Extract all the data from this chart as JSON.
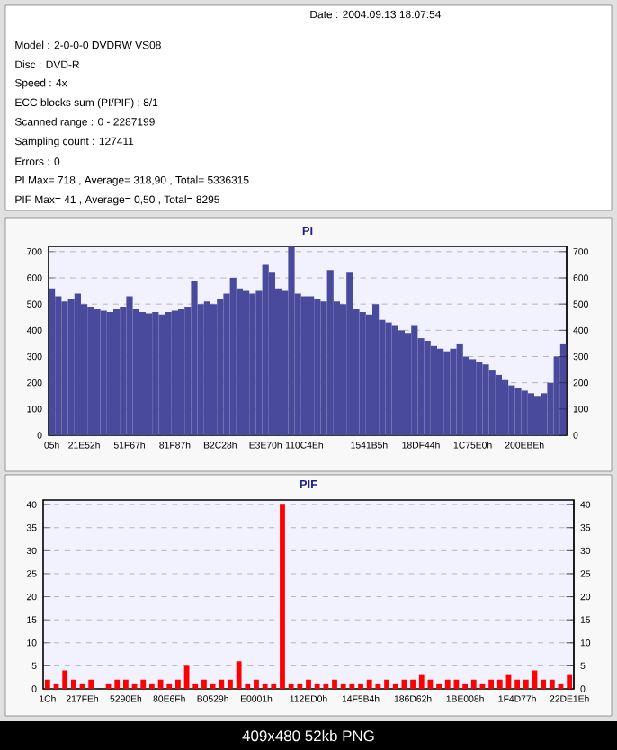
{
  "chart_data": [
    {
      "type": "other",
      "annotations": [
        "Date : 2004.09.13 18:07:54",
        "Model : 2-0-0-0 DVDRW VS08",
        "Disc : DVD-R",
        "Speed : 4x",
        "ECC blocks sum (PI/PIF) : 8/1",
        "Scanned range : 0 - 2287199",
        "Sampling count : 127411",
        "Errors : 0",
        "PI Max= 718 , Average= 318,90 , Total= 5336315",
        "PIF Max= 41 , Average= 0,50 , Total= 8295"
      ]
    },
    {
      "type": "bar",
      "title": "PI",
      "color": "#4a4a9c",
      "grid": "y",
      "categories": [
        "05h",
        null,
        null,
        null,
        null,
        "21E52h",
        null,
        null,
        null,
        null,
        null,
        null,
        "51F67h",
        null,
        null,
        null,
        null,
        null,
        null,
        "81F87h",
        null,
        null,
        null,
        null,
        null,
        null,
        "B2C28h",
        null,
        null,
        null,
        null,
        null,
        null,
        "E3E70h",
        null,
        null,
        null,
        null,
        null,
        "110C4Eh",
        null,
        null,
        null,
        null,
        null,
        null,
        null,
        null,
        null,
        "1541B5h",
        null,
        null,
        null,
        null,
        null,
        null,
        null,
        "18DF44h",
        null,
        null,
        null,
        null,
        null,
        null,
        null,
        "1C75E0h",
        null,
        null,
        null,
        null,
        null,
        null,
        null,
        "200EBEh",
        null,
        null,
        null,
        null,
        null,
        null
      ],
      "values": [
        560,
        530,
        510,
        520,
        540,
        500,
        490,
        480,
        475,
        470,
        480,
        490,
        530,
        480,
        470,
        465,
        470,
        460,
        470,
        475,
        480,
        490,
        590,
        500,
        510,
        500,
        520,
        540,
        600,
        560,
        550,
        540,
        550,
        650,
        620,
        560,
        550,
        718,
        540,
        530,
        530,
        520,
        510,
        630,
        510,
        500,
        620,
        480,
        470,
        460,
        500,
        440,
        430,
        420,
        400,
        390,
        420,
        370,
        360,
        340,
        330,
        320,
        330,
        350,
        300,
        290,
        280,
        270,
        250,
        230,
        210,
        190,
        180,
        170,
        160,
        150,
        160,
        200,
        300,
        350
      ],
      "ylim": [
        0,
        720
      ],
      "yticks": [
        0,
        100,
        200,
        300,
        400,
        500,
        600,
        700
      ],
      "y2lim": [
        0,
        720
      ],
      "y2ticks": [
        0,
        100,
        200,
        300,
        400,
        500,
        600,
        700
      ]
    },
    {
      "type": "bar",
      "title": "PIF",
      "color": "#ff0000",
      "grid": "y",
      "categories": [
        "1Ch",
        null,
        null,
        null,
        "217FEh",
        null,
        null,
        null,
        null,
        "5290Eh",
        null,
        null,
        null,
        null,
        "80E6Fh",
        null,
        null,
        null,
        null,
        "B0529h",
        null,
        null,
        null,
        null,
        "E0001h",
        null,
        null,
        null,
        null,
        null,
        "112ED0h",
        null,
        null,
        null,
        null,
        null,
        "14F5B4h",
        null,
        null,
        null,
        null,
        null,
        "186D62h",
        null,
        null,
        null,
        null,
        null,
        "1BE008h",
        null,
        null,
        null,
        null,
        null,
        "1F4D77h",
        null,
        null,
        null,
        null,
        null,
        "22DE1Eh"
      ],
      "values": [
        2,
        1,
        4,
        2,
        1,
        2,
        0,
        1,
        2,
        2,
        1,
        2,
        1,
        2,
        1,
        2,
        5,
        1,
        2,
        1,
        2,
        2,
        6,
        1,
        2,
        1,
        1,
        40,
        1,
        1,
        2,
        1,
        1,
        2,
        1,
        1,
        1,
        2,
        1,
        2,
        1,
        2,
        2,
        3,
        2,
        1,
        2,
        2,
        1,
        2,
        1,
        2,
        2,
        3,
        2,
        2,
        4,
        2,
        2,
        1,
        3
      ],
      "ylim": [
        0,
        41
      ],
      "yticks": [
        0,
        5,
        10,
        15,
        20,
        25,
        30,
        35,
        40
      ],
      "y2lim": [
        0,
        41
      ],
      "y2ticks": [
        0,
        5,
        10,
        15,
        20,
        25,
        30,
        35,
        40
      ],
      "annotations": [
        "409x480 52kb PNG"
      ]
    }
  ]
}
